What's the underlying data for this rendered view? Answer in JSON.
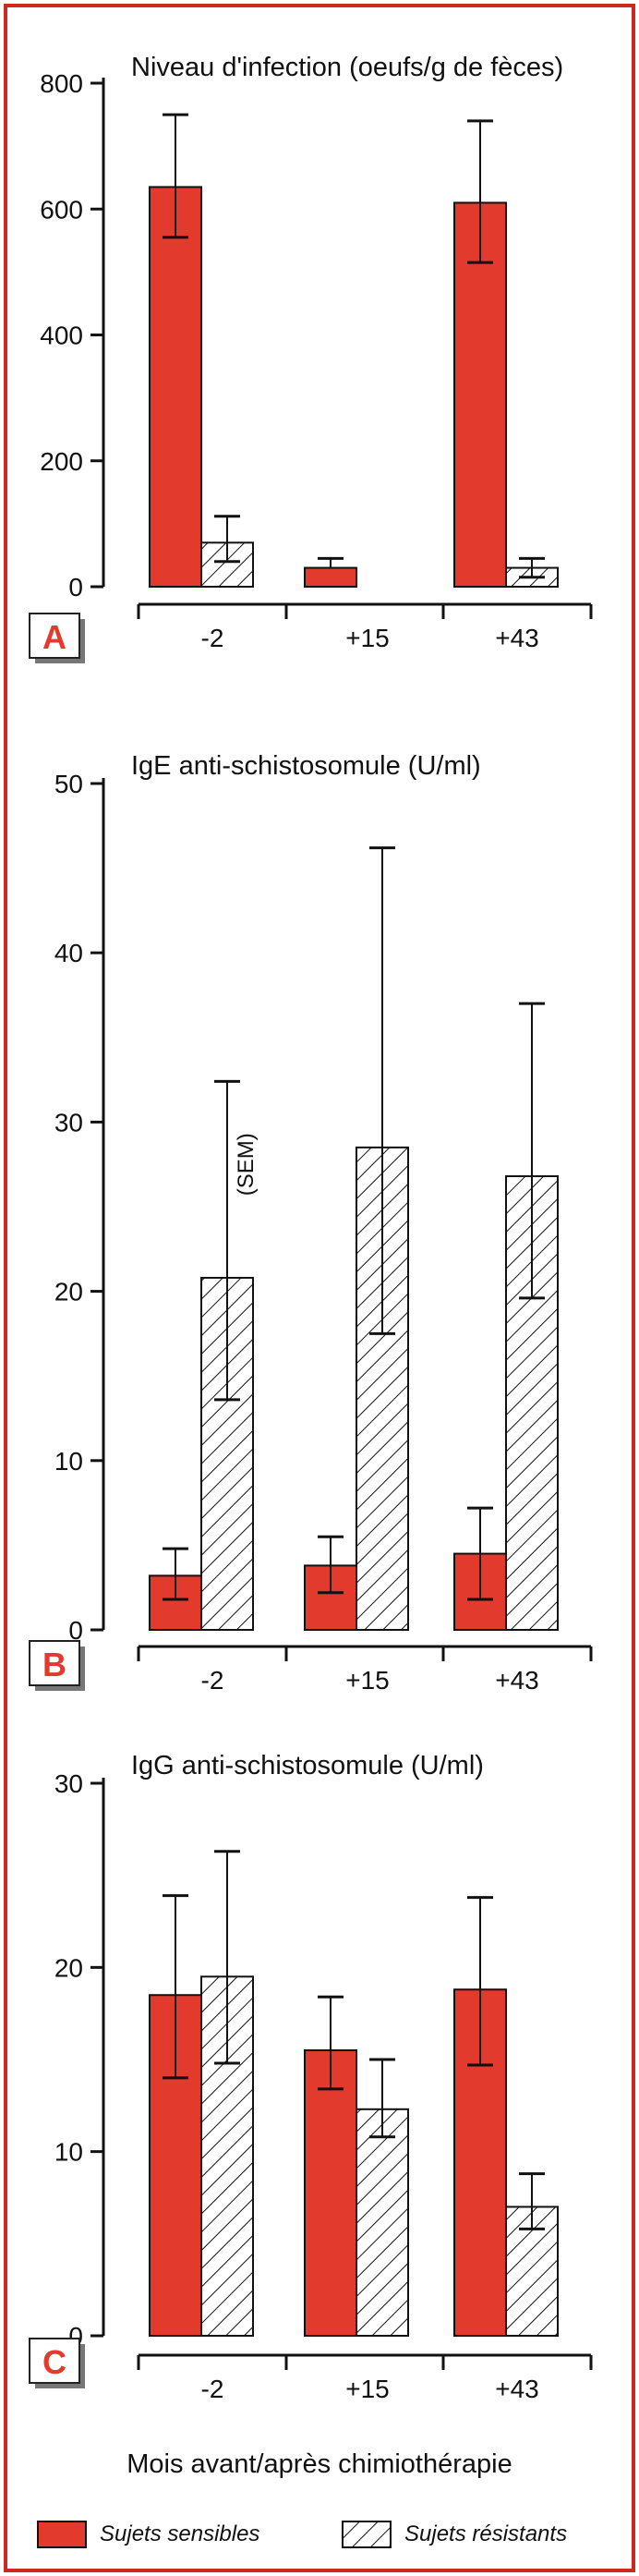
{
  "colors": {
    "sensitive": "#e23b2e",
    "resistant": "#ffffff",
    "ink": "#111111",
    "frame": "#cc2a20",
    "bg": "#ffffff"
  },
  "legend": {
    "sensitive": "Sujets sensibles",
    "resistant": "Sujets résistants"
  },
  "xaxis_label": "Mois avant/après chimiothérapie",
  "chart_data": [
    {
      "type": "bar",
      "panel": "A",
      "title": "Niveau d'infection (oeufs/g de fèces)",
      "categories": [
        "-2",
        "+15",
        "+43"
      ],
      "ylim": [
        0,
        800
      ],
      "yticks": [
        0,
        200,
        400,
        600,
        800
      ],
      "series": [
        {
          "name": "Sujets sensibles",
          "values": [
            635,
            30,
            610
          ],
          "err_low": [
            555,
            null,
            515
          ],
          "err_high": [
            750,
            45,
            740
          ]
        },
        {
          "name": "Sujets résistants",
          "values": [
            70,
            0,
            30
          ],
          "err_low": [
            40,
            null,
            15
          ],
          "err_high": [
            112,
            null,
            45
          ]
        }
      ]
    },
    {
      "type": "bar",
      "panel": "B",
      "title": "IgE anti-schistosomule (U/ml)",
      "categories": [
        "-2",
        "+15",
        "+43"
      ],
      "ylim": [
        0,
        50
      ],
      "yticks": [
        0,
        10,
        20,
        30,
        40,
        50
      ],
      "annotation": "(SEM)",
      "series": [
        {
          "name": "Sujets sensibles",
          "values": [
            3.2,
            3.8,
            4.5
          ],
          "err_low": [
            1.8,
            2.2,
            1.8
          ],
          "err_high": [
            4.8,
            5.5,
            7.2
          ]
        },
        {
          "name": "Sujets résistants",
          "values": [
            20.8,
            28.5,
            26.8
          ],
          "err_low": [
            13.6,
            17.5,
            19.6
          ],
          "err_high": [
            32.4,
            46.2,
            37
          ]
        }
      ]
    },
    {
      "type": "bar",
      "panel": "C",
      "title": "IgG anti-schistosomule (U/ml)",
      "categories": [
        "-2",
        "+15",
        "+43"
      ],
      "ylim": [
        0,
        30
      ],
      "yticks": [
        0,
        10,
        20,
        30
      ],
      "series": [
        {
          "name": "Sujets sensibles",
          "values": [
            18.5,
            15.5,
            18.8
          ],
          "err_low": [
            14,
            13.4,
            14.7
          ],
          "err_high": [
            23.9,
            18.4,
            23.8
          ]
        },
        {
          "name": "Sujets résistants",
          "values": [
            19.5,
            12.3,
            7
          ],
          "err_low": [
            14.8,
            10.8,
            5.8
          ],
          "err_high": [
            26.3,
            15,
            8.8
          ]
        }
      ]
    }
  ]
}
